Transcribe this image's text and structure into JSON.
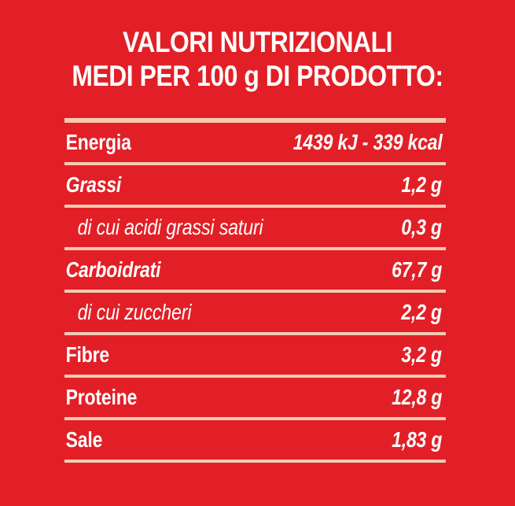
{
  "colors": {
    "background": "#e21f26",
    "text": "#ffffff",
    "rule": "#f2cbb2"
  },
  "heading": {
    "line1": "VALORI NUTRIZIONALI",
    "line2": "MEDI PER 100 g DI PRODOTTO:"
  },
  "table": {
    "rows": [
      {
        "label": "Energia",
        "value": "1439 kJ - 339 kcal"
      },
      {
        "label": "Grassi",
        "value": "1,2 g"
      },
      {
        "label": "di cui acidi grassi saturi",
        "value": "0,3 g"
      },
      {
        "label": "Carboidrati",
        "value": "67,7 g"
      },
      {
        "label": "di cui zuccheri",
        "value": "2,2 g"
      },
      {
        "label": "Fibre",
        "value": "3,2 g"
      },
      {
        "label": "Proteine",
        "value": "12,8 g"
      },
      {
        "label": "Sale",
        "value": "1,83 g"
      }
    ]
  }
}
